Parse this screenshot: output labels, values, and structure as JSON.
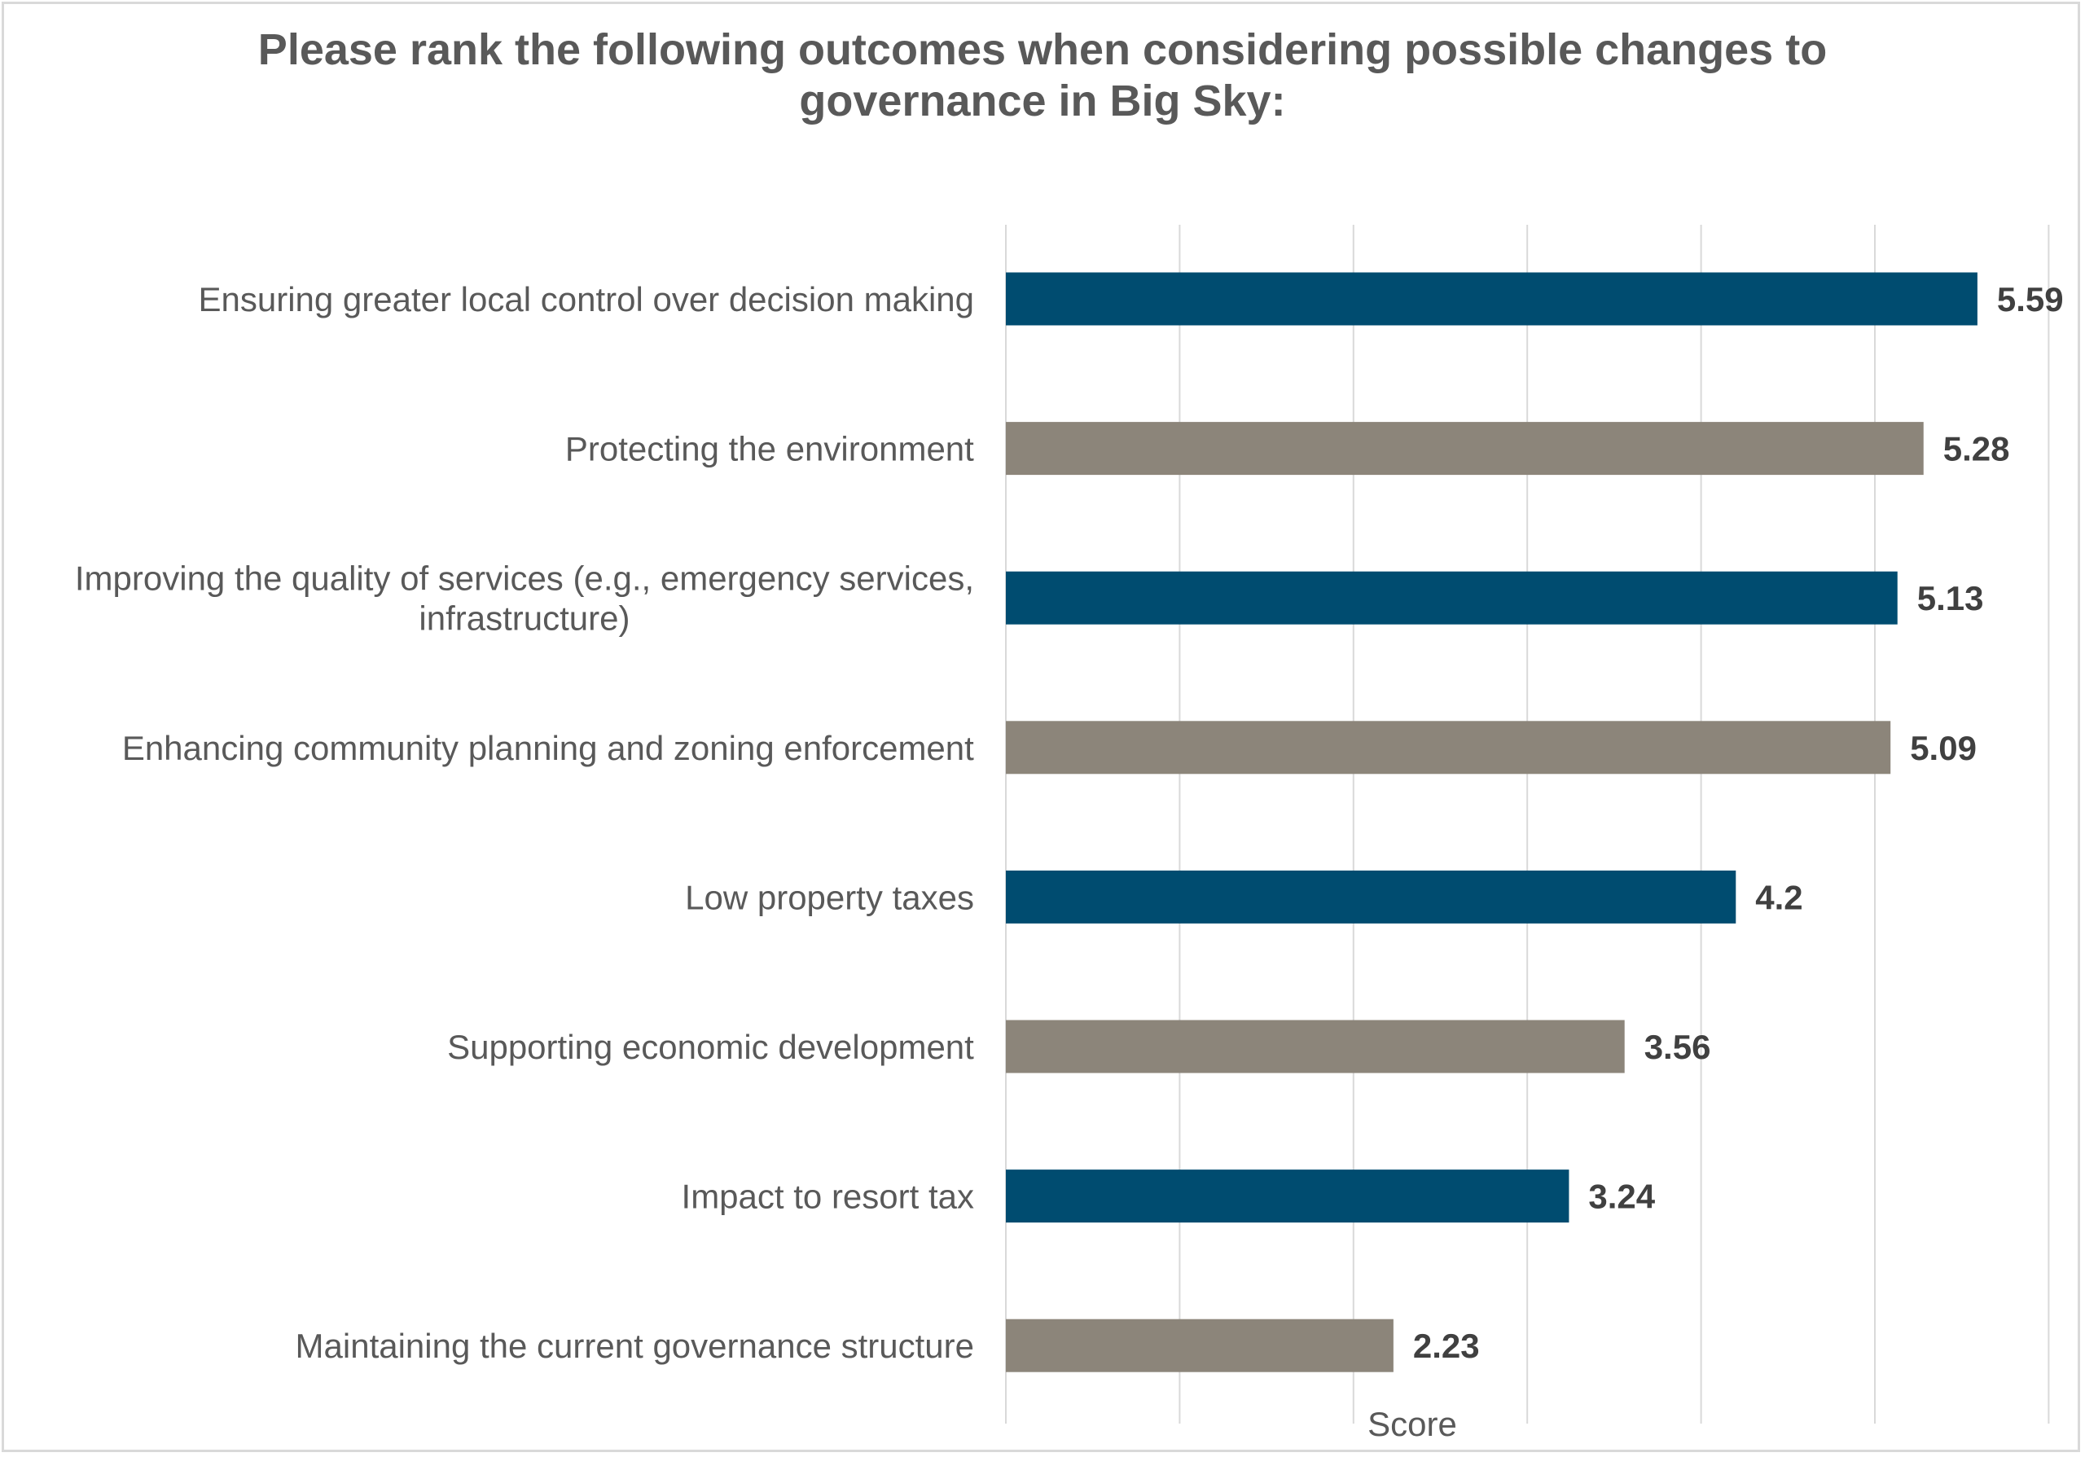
{
  "chart_data": {
    "type": "bar",
    "orientation": "horizontal",
    "title": "Please rank the following outcomes when considering possible changes to governance in Big Sky:",
    "xlabel": "Score",
    "ylabel": "",
    "categories": [
      "Ensuring greater local control over decision making",
      "Protecting the environment",
      "Improving the quality of services (e.g., emergency services, infrastructure)",
      "Enhancing community planning and zoning enforcement",
      "Low property taxes",
      "Supporting economic development",
      "Impact to resort tax",
      "Maintaining the current governance structure"
    ],
    "category_lines": [
      [
        "Ensuring greater local control over decision making"
      ],
      [
        "Protecting the environment"
      ],
      [
        "Improving the quality of services (e.g., emergency services,",
        "infrastructure)"
      ],
      [
        "Enhancing community planning and zoning enforcement"
      ],
      [
        "Low property taxes"
      ],
      [
        "Supporting economic development"
      ],
      [
        "Impact to resort tax"
      ],
      [
        "Maintaining the current governance structure"
      ]
    ],
    "values": [
      5.59,
      5.28,
      5.13,
      5.09,
      4.2,
      3.56,
      3.24,
      2.23
    ],
    "value_labels": [
      "5.59",
      "5.28",
      "5.13",
      "5.09",
      "4.2",
      "3.56",
      "3.24",
      "2.23"
    ],
    "xlim": [
      0,
      6
    ],
    "grid": true,
    "gridline_interval": 1,
    "tick_labels_shown": false,
    "legend": "none",
    "bar_colors": [
      "#004c70",
      "#8c857a",
      "#004c70",
      "#8c857a",
      "#004c70",
      "#8c857a",
      "#004c70",
      "#8c857a"
    ],
    "gridline_color": "#d9d9d9"
  }
}
